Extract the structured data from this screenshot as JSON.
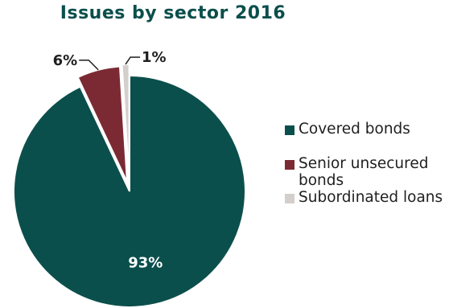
{
  "chart_data": {
    "type": "pie",
    "title": "Issues by sector 2016",
    "slices": [
      {
        "name": "Covered bonds",
        "value": 93,
        "label": "93%",
        "color": "#0b4f4c"
      },
      {
        "name": "Senior unsecured bonds",
        "value": 6,
        "label": "6%",
        "color": "#7b2a33"
      },
      {
        "name": "Subordinated loans",
        "value": 1,
        "label": "1%",
        "color": "#d4cfcc"
      }
    ],
    "legend_position": "right",
    "title_color": "#0b4f4c"
  }
}
